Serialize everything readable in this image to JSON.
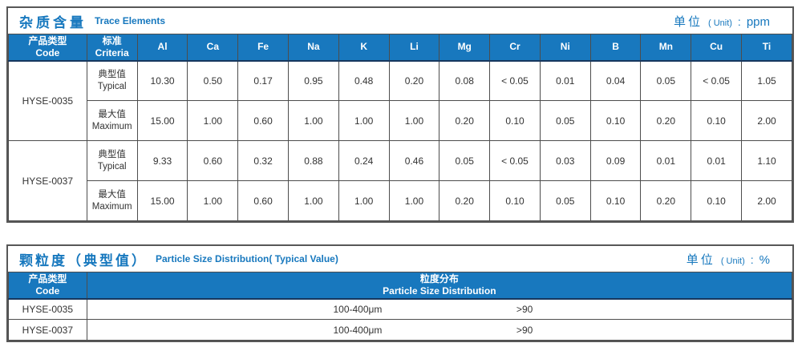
{
  "colors": {
    "header_blue": "#1878be",
    "navy_line": "#17375e",
    "border_gray": "#575757",
    "title_blue": "#1778be",
    "text": "#333333"
  },
  "trace_table": {
    "title_zh": "杂质含量",
    "title_en": "Trace Elements",
    "unit_zh": "单位",
    "unit_paren": "( Unit)",
    "unit_colon": ":",
    "unit_value": "ppm",
    "code_header_zh": "产品类型",
    "code_header_en": "Code",
    "criteria_header_zh": "标准",
    "criteria_header_en": "Criteria",
    "elements": [
      "Al",
      "Ca",
      "Fe",
      "Na",
      "K",
      "Li",
      "Mg",
      "Cr",
      "Ni",
      "B",
      "Mn",
      "Cu",
      "Ti"
    ],
    "products": [
      {
        "code": "HYSE-0035",
        "rows": [
          {
            "label_zh": "典型值",
            "label_en": "Typical",
            "values": [
              "10.30",
              "0.50",
              "0.17",
              "0.95",
              "0.48",
              "0.20",
              "0.08",
              "< 0.05",
              "0.01",
              "0.04",
              "0.05",
              "< 0.05",
              "1.05"
            ]
          },
          {
            "label_zh": "最大值",
            "label_en": "Maximum",
            "values": [
              "15.00",
              "1.00",
              "0.60",
              "1.00",
              "1.00",
              "1.00",
              "0.20",
              "0.10",
              "0.05",
              "0.10",
              "0.20",
              "0.10",
              "2.00"
            ]
          }
        ]
      },
      {
        "code": "HYSE-0037",
        "rows": [
          {
            "label_zh": "典型值",
            "label_en": "Typical",
            "values": [
              "9.33",
              "0.60",
              "0.32",
              "0.88",
              "0.24",
              "0.46",
              "0.05",
              "< 0.05",
              "0.03",
              "0.09",
              "0.01",
              "0.01",
              "1.10"
            ]
          },
          {
            "label_zh": "最大值",
            "label_en": "Maximum",
            "values": [
              "15.00",
              "1.00",
              "0.60",
              "1.00",
              "1.00",
              "1.00",
              "0.20",
              "0.10",
              "0.05",
              "0.10",
              "0.20",
              "0.10",
              "2.00"
            ]
          }
        ]
      }
    ]
  },
  "particle_table": {
    "title_zh": "颗粒度（典型值）",
    "title_en": "Particle Size Distribution( Typical Value)",
    "unit_zh": "单位",
    "unit_paren": "( Unit)",
    "unit_colon": ":",
    "unit_value": "%",
    "code_header_zh": "产品类型",
    "code_header_en": "Code",
    "dist_header_zh": "粒度分布",
    "dist_header_en": "Particle Size Distribution",
    "rows": [
      {
        "code": "HYSE-0035",
        "range": "100-400μm",
        "value": ">90"
      },
      {
        "code": "HYSE-0037",
        "range": "100-400μm",
        "value": ">90"
      }
    ]
  }
}
